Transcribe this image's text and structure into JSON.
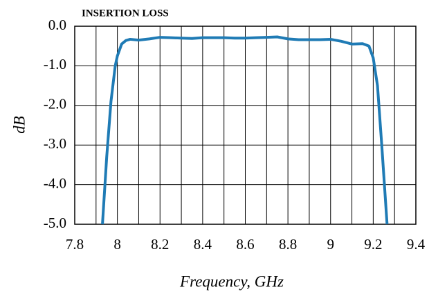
{
  "chart_data": {
    "type": "line",
    "title": "INSERTION LOSS",
    "xlabel": "Frequency, GHz",
    "ylabel": "dB",
    "color": "#1f7bb5",
    "grid": true,
    "x": [
      7.93,
      7.95,
      7.97,
      7.99,
      8.0,
      8.02,
      8.04,
      8.06,
      8.1,
      8.15,
      8.2,
      8.25,
      8.3,
      8.35,
      8.4,
      8.45,
      8.5,
      8.55,
      8.6,
      8.65,
      8.7,
      8.75,
      8.8,
      8.85,
      8.9,
      8.95,
      9.0,
      9.05,
      9.1,
      9.15,
      9.18,
      9.2,
      9.22,
      9.24,
      9.265
    ],
    "values": [
      -5.0,
      -3.3,
      -1.9,
      -1.0,
      -0.75,
      -0.45,
      -0.36,
      -0.33,
      -0.35,
      -0.32,
      -0.28,
      -0.29,
      -0.3,
      -0.31,
      -0.29,
      -0.29,
      -0.29,
      -0.3,
      -0.3,
      -0.29,
      -0.28,
      -0.27,
      -0.32,
      -0.34,
      -0.34,
      -0.34,
      -0.33,
      -0.38,
      -0.45,
      -0.44,
      -0.5,
      -0.8,
      -1.5,
      -3.0,
      -5.0
    ],
    "xlim": [
      7.8,
      9.4
    ],
    "xticks": [
      7.8,
      8,
      8.2,
      8.4,
      8.6,
      8.8,
      9,
      9.2,
      9.4
    ],
    "xminorticks": [
      7.9,
      8.1,
      8.3,
      8.5,
      8.7,
      8.9,
      9.1,
      9.3
    ],
    "ylim": [
      -5,
      0
    ],
    "yticks": [
      {
        "value": 0,
        "label": "0.0"
      },
      {
        "value": -1,
        "label": "-1.0"
      },
      {
        "value": -2,
        "label": "-2.0"
      },
      {
        "value": -3,
        "label": "-3.0"
      },
      {
        "value": -4,
        "label": "-4.0"
      },
      {
        "value": -5,
        "label": "-5.0"
      }
    ]
  }
}
